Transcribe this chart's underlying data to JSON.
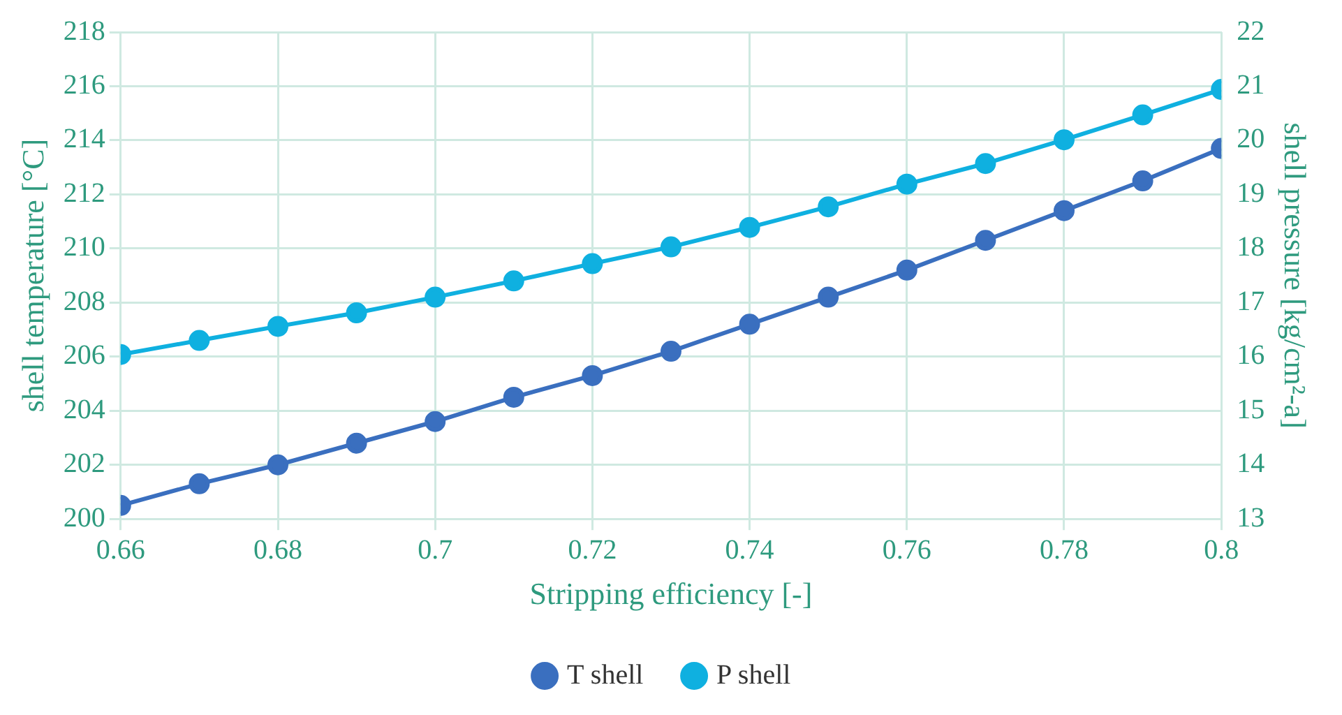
{
  "chart_data": {
    "type": "line",
    "xlabel": "Stripping efficiency [-]",
    "ylabel": "shell temperature [°C]",
    "y2label": "shell pressure [kg/cm²-a]",
    "x": [
      0.66,
      0.67,
      0.68,
      0.69,
      0.7,
      0.71,
      0.72,
      0.73,
      0.74,
      0.75,
      0.76,
      0.77,
      0.78,
      0.79,
      0.8
    ],
    "series": [
      {
        "name": "T shell",
        "color": "#3a6fbf",
        "values": [
          200.5,
          201.3,
          202.0,
          202.8,
          203.6,
          204.5,
          205.3,
          206.2,
          207.2,
          208.2,
          209.2,
          210.3,
          211.4,
          212.5,
          213.7
        ]
      },
      {
        "name": "P shell",
        "color": "#0fb0e0",
        "axis": "y2",
        "values": [
          16.04,
          16.3,
          16.56,
          16.81,
          17.1,
          17.4,
          17.72,
          18.03,
          18.39,
          18.77,
          19.19,
          19.57,
          20.01,
          20.47,
          20.94
        ]
      }
    ],
    "xlim": [
      0.66,
      0.8
    ],
    "xticks": [
      0.66,
      0.68,
      0.7,
      0.72,
      0.74,
      0.76,
      0.78,
      0.8
    ],
    "ylim": [
      200,
      218
    ],
    "yticks": [
      200,
      202,
      204,
      206,
      208,
      210,
      212,
      214,
      216,
      218
    ],
    "y2lim": [
      13,
      22
    ],
    "y2ticks": [
      13,
      14,
      15,
      16,
      17,
      18,
      19,
      20,
      21,
      22
    ],
    "grid": true,
    "legend": "bottom",
    "marker": "circle",
    "line_style": "solid"
  }
}
